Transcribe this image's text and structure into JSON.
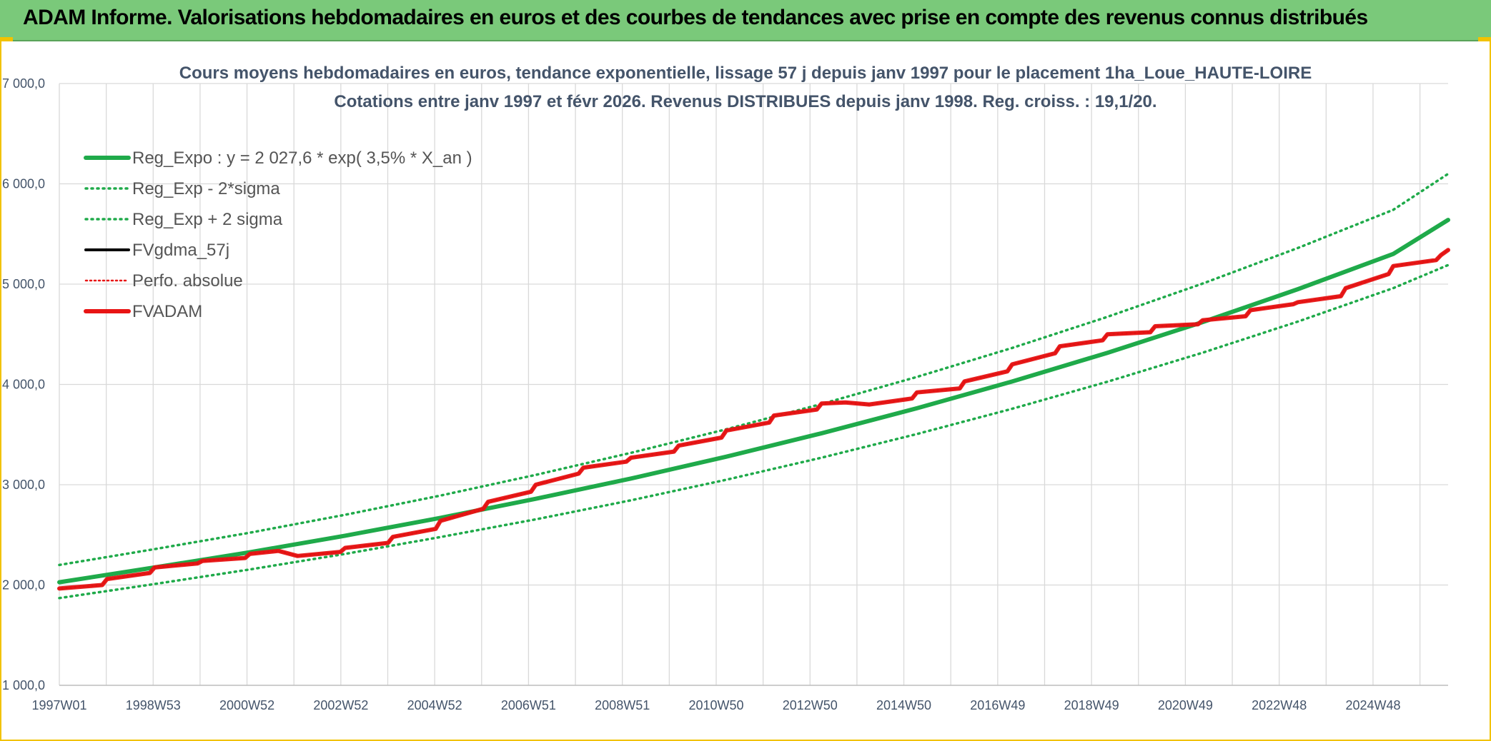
{
  "header": {
    "title": "ADAM Informe. Valorisations hebdomadaires en euros et des courbes de tendances avec prise en compte des revenus connus distribués"
  },
  "colors": {
    "green": "#1faa4a",
    "red": "#e81414",
    "black": "#000000",
    "grid": "#d9d9d9",
    "banner": "#7ac97a",
    "frame": "#f2c200"
  },
  "chart_data": {
    "type": "line",
    "title": "Cours moyens hebdomadaires en euros, tendance exponentielle, lissage 57 j depuis janv 1997 pour le placement 1ha_Loue_HAUTE-LOIRE",
    "subtitle": "Cotations entre janv 1997 et févr 2026. Revenus DISTRIBUES depuis janv 1998. Reg. croiss. : 19,1/20.",
    "x_ticks": [
      "1997W01",
      "1998W53",
      "2000W52",
      "2002W52",
      "2004W52",
      "2006W51",
      "2008W51",
      "2010W50",
      "2012W50",
      "2014W50",
      "2016W49",
      "2018W49",
      "2020W49",
      "2022W48",
      "2024W48"
    ],
    "x_range": [
      1997.0,
      2026.15
    ],
    "y_ticks": [
      "1 000,0",
      "2 000,0",
      "3 000,0",
      "4 000,0",
      "5 000,0",
      "6 000,0",
      "7 000,0"
    ],
    "y_range": [
      1000,
      7000
    ],
    "grid": true,
    "legend": "top-left",
    "series": [
      {
        "name": "Reg_Expo : y = 2 027,6 * exp( 3,5% *  X_an )",
        "style": "solid",
        "color": "#1faa4a",
        "x": [
          1997,
          1999,
          2001,
          2003,
          2005,
          2007,
          2009,
          2011,
          2013,
          2015,
          2017,
          2019,
          2021,
          2023,
          2025,
          2026.15
        ],
        "y": [
          2028,
          2175,
          2327,
          2492,
          2670,
          2860,
          3062,
          3280,
          3513,
          3762,
          4029,
          4315,
          4622,
          4950,
          5301,
          5640
        ]
      },
      {
        "name": "Reg_Exp - 2*sigma",
        "style": "dotted",
        "color": "#1faa4a",
        "x": [
          1997,
          1999,
          2001,
          2003,
          2005,
          2007,
          2009,
          2011,
          2013,
          2015,
          2017,
          2019,
          2021,
          2023,
          2025,
          2026.15
        ],
        "y": [
          1870,
          2010,
          2155,
          2310,
          2478,
          2655,
          2845,
          3050,
          3270,
          3505,
          3757,
          4027,
          4317,
          4627,
          4960,
          5190
        ]
      },
      {
        "name": "Reg_Exp + 2 sigma",
        "style": "dotted",
        "color": "#1faa4a",
        "x": [
          1997,
          1999,
          2001,
          2003,
          2005,
          2007,
          2009,
          2011,
          2013,
          2015,
          2017,
          2019,
          2021,
          2023,
          2025,
          2026.15
        ],
        "y": [
          2200,
          2358,
          2522,
          2700,
          2892,
          3098,
          3318,
          3553,
          3805,
          4075,
          4364,
          4674,
          5006,
          5361,
          5741,
          6100
        ]
      },
      {
        "name": "FVgdma_57j",
        "style": "solid",
        "color": "#000000",
        "x": [
          1997.0,
          1997.9,
          1998.0,
          1998.9,
          1999.0,
          1999.9,
          2000.0,
          2000.9,
          2001.0,
          2001.6,
          2002.0,
          2002.9,
          2003.0,
          2003.9,
          2004.0,
          2004.9,
          2005.0,
          2005.9,
          2006.0,
          2006.9,
          2007.0,
          2007.9,
          2008.0,
          2008.9,
          2009.0,
          2009.9,
          2010.0,
          2010.9,
          2011.0,
          2011.9,
          2012.0,
          2012.9,
          2013.0,
          2013.5,
          2014.0,
          2014.9,
          2015.0,
          2015.9,
          2016.0,
          2016.9,
          2017.0,
          2017.9,
          2018.0,
          2018.9,
          2019.0,
          2019.9,
          2020.0,
          2020.9,
          2021.0,
          2021.9,
          2022.0,
          2022.9,
          2023.0,
          2023.9,
          2024.0,
          2024.9,
          2025.0,
          2025.9,
          2026.0,
          2026.15
        ],
        "y": [
          1965,
          2000,
          2060,
          2120,
          2175,
          2215,
          2240,
          2270,
          2310,
          2340,
          2290,
          2330,
          2370,
          2420,
          2480,
          2560,
          2640,
          2760,
          2830,
          2930,
          3000,
          3110,
          3170,
          3230,
          3270,
          3330,
          3390,
          3470,
          3540,
          3620,
          3690,
          3750,
          3810,
          3820,
          3800,
          3860,
          3920,
          3960,
          4030,
          4130,
          4200,
          4310,
          4380,
          4440,
          4500,
          4520,
          4580,
          4600,
          4640,
          4680,
          4740,
          4800,
          4820,
          4880,
          4960,
          5100,
          5180,
          5240,
          5290,
          5340
        ]
      },
      {
        "name": "Perfo. absolue",
        "style": "dotted",
        "color": "#e81414",
        "x": [
          1997.0,
          1997.9,
          1998.0,
          1998.9,
          1999.0,
          1999.9,
          2000.0,
          2000.9,
          2001.0,
          2001.6,
          2002.0,
          2002.9,
          2003.0,
          2003.9,
          2004.0,
          2004.9,
          2005.0,
          2005.9,
          2006.0,
          2006.9,
          2007.0,
          2007.9,
          2008.0,
          2008.9,
          2009.0,
          2009.9,
          2010.0,
          2010.9,
          2011.0,
          2011.9,
          2012.0,
          2012.9,
          2013.0,
          2013.5,
          2014.0,
          2014.9,
          2015.0,
          2015.9,
          2016.0,
          2016.9,
          2017.0,
          2017.9,
          2018.0,
          2018.9,
          2019.0,
          2019.9,
          2020.0,
          2020.9,
          2021.0,
          2021.9,
          2022.0,
          2022.9,
          2023.0,
          2023.9,
          2024.0,
          2024.9,
          2025.0,
          2025.9,
          2026.0,
          2026.15
        ],
        "y": [
          1965,
          2000,
          2060,
          2120,
          2175,
          2215,
          2240,
          2270,
          2310,
          2340,
          2290,
          2330,
          2370,
          2420,
          2480,
          2560,
          2640,
          2760,
          2830,
          2930,
          3000,
          3110,
          3170,
          3230,
          3270,
          3330,
          3390,
          3470,
          3540,
          3620,
          3690,
          3750,
          3810,
          3820,
          3800,
          3860,
          3920,
          3960,
          4030,
          4130,
          4200,
          4310,
          4380,
          4440,
          4500,
          4520,
          4580,
          4600,
          4640,
          4680,
          4740,
          4800,
          4820,
          4880,
          4960,
          5100,
          5180,
          5240,
          5290,
          5340
        ]
      },
      {
        "name": "FVADAM",
        "style": "solid",
        "color": "#e81414",
        "x": [
          1997.0,
          1997.9,
          1998.0,
          1998.9,
          1999.0,
          1999.9,
          2000.0,
          2000.9,
          2001.0,
          2001.6,
          2002.0,
          2002.9,
          2003.0,
          2003.9,
          2004.0,
          2004.9,
          2005.0,
          2005.9,
          2006.0,
          2006.9,
          2007.0,
          2007.9,
          2008.0,
          2008.9,
          2009.0,
          2009.9,
          2010.0,
          2010.9,
          2011.0,
          2011.9,
          2012.0,
          2012.9,
          2013.0,
          2013.5,
          2014.0,
          2014.9,
          2015.0,
          2015.9,
          2016.0,
          2016.9,
          2017.0,
          2017.9,
          2018.0,
          2018.9,
          2019.0,
          2019.9,
          2020.0,
          2020.9,
          2021.0,
          2021.9,
          2022.0,
          2022.9,
          2023.0,
          2023.9,
          2024.0,
          2024.9,
          2025.0,
          2025.9,
          2026.0,
          2026.15
        ],
        "y": [
          1965,
          2000,
          2060,
          2120,
          2175,
          2215,
          2240,
          2270,
          2310,
          2340,
          2290,
          2330,
          2370,
          2420,
          2480,
          2560,
          2640,
          2760,
          2830,
          2930,
          3000,
          3110,
          3170,
          3230,
          3270,
          3330,
          3390,
          3470,
          3540,
          3620,
          3690,
          3750,
          3810,
          3820,
          3800,
          3860,
          3920,
          3960,
          4030,
          4130,
          4200,
          4310,
          4380,
          4440,
          4500,
          4520,
          4580,
          4600,
          4640,
          4680,
          4740,
          4800,
          4820,
          4880,
          4960,
          5100,
          5180,
          5240,
          5290,
          5340
        ]
      }
    ]
  }
}
